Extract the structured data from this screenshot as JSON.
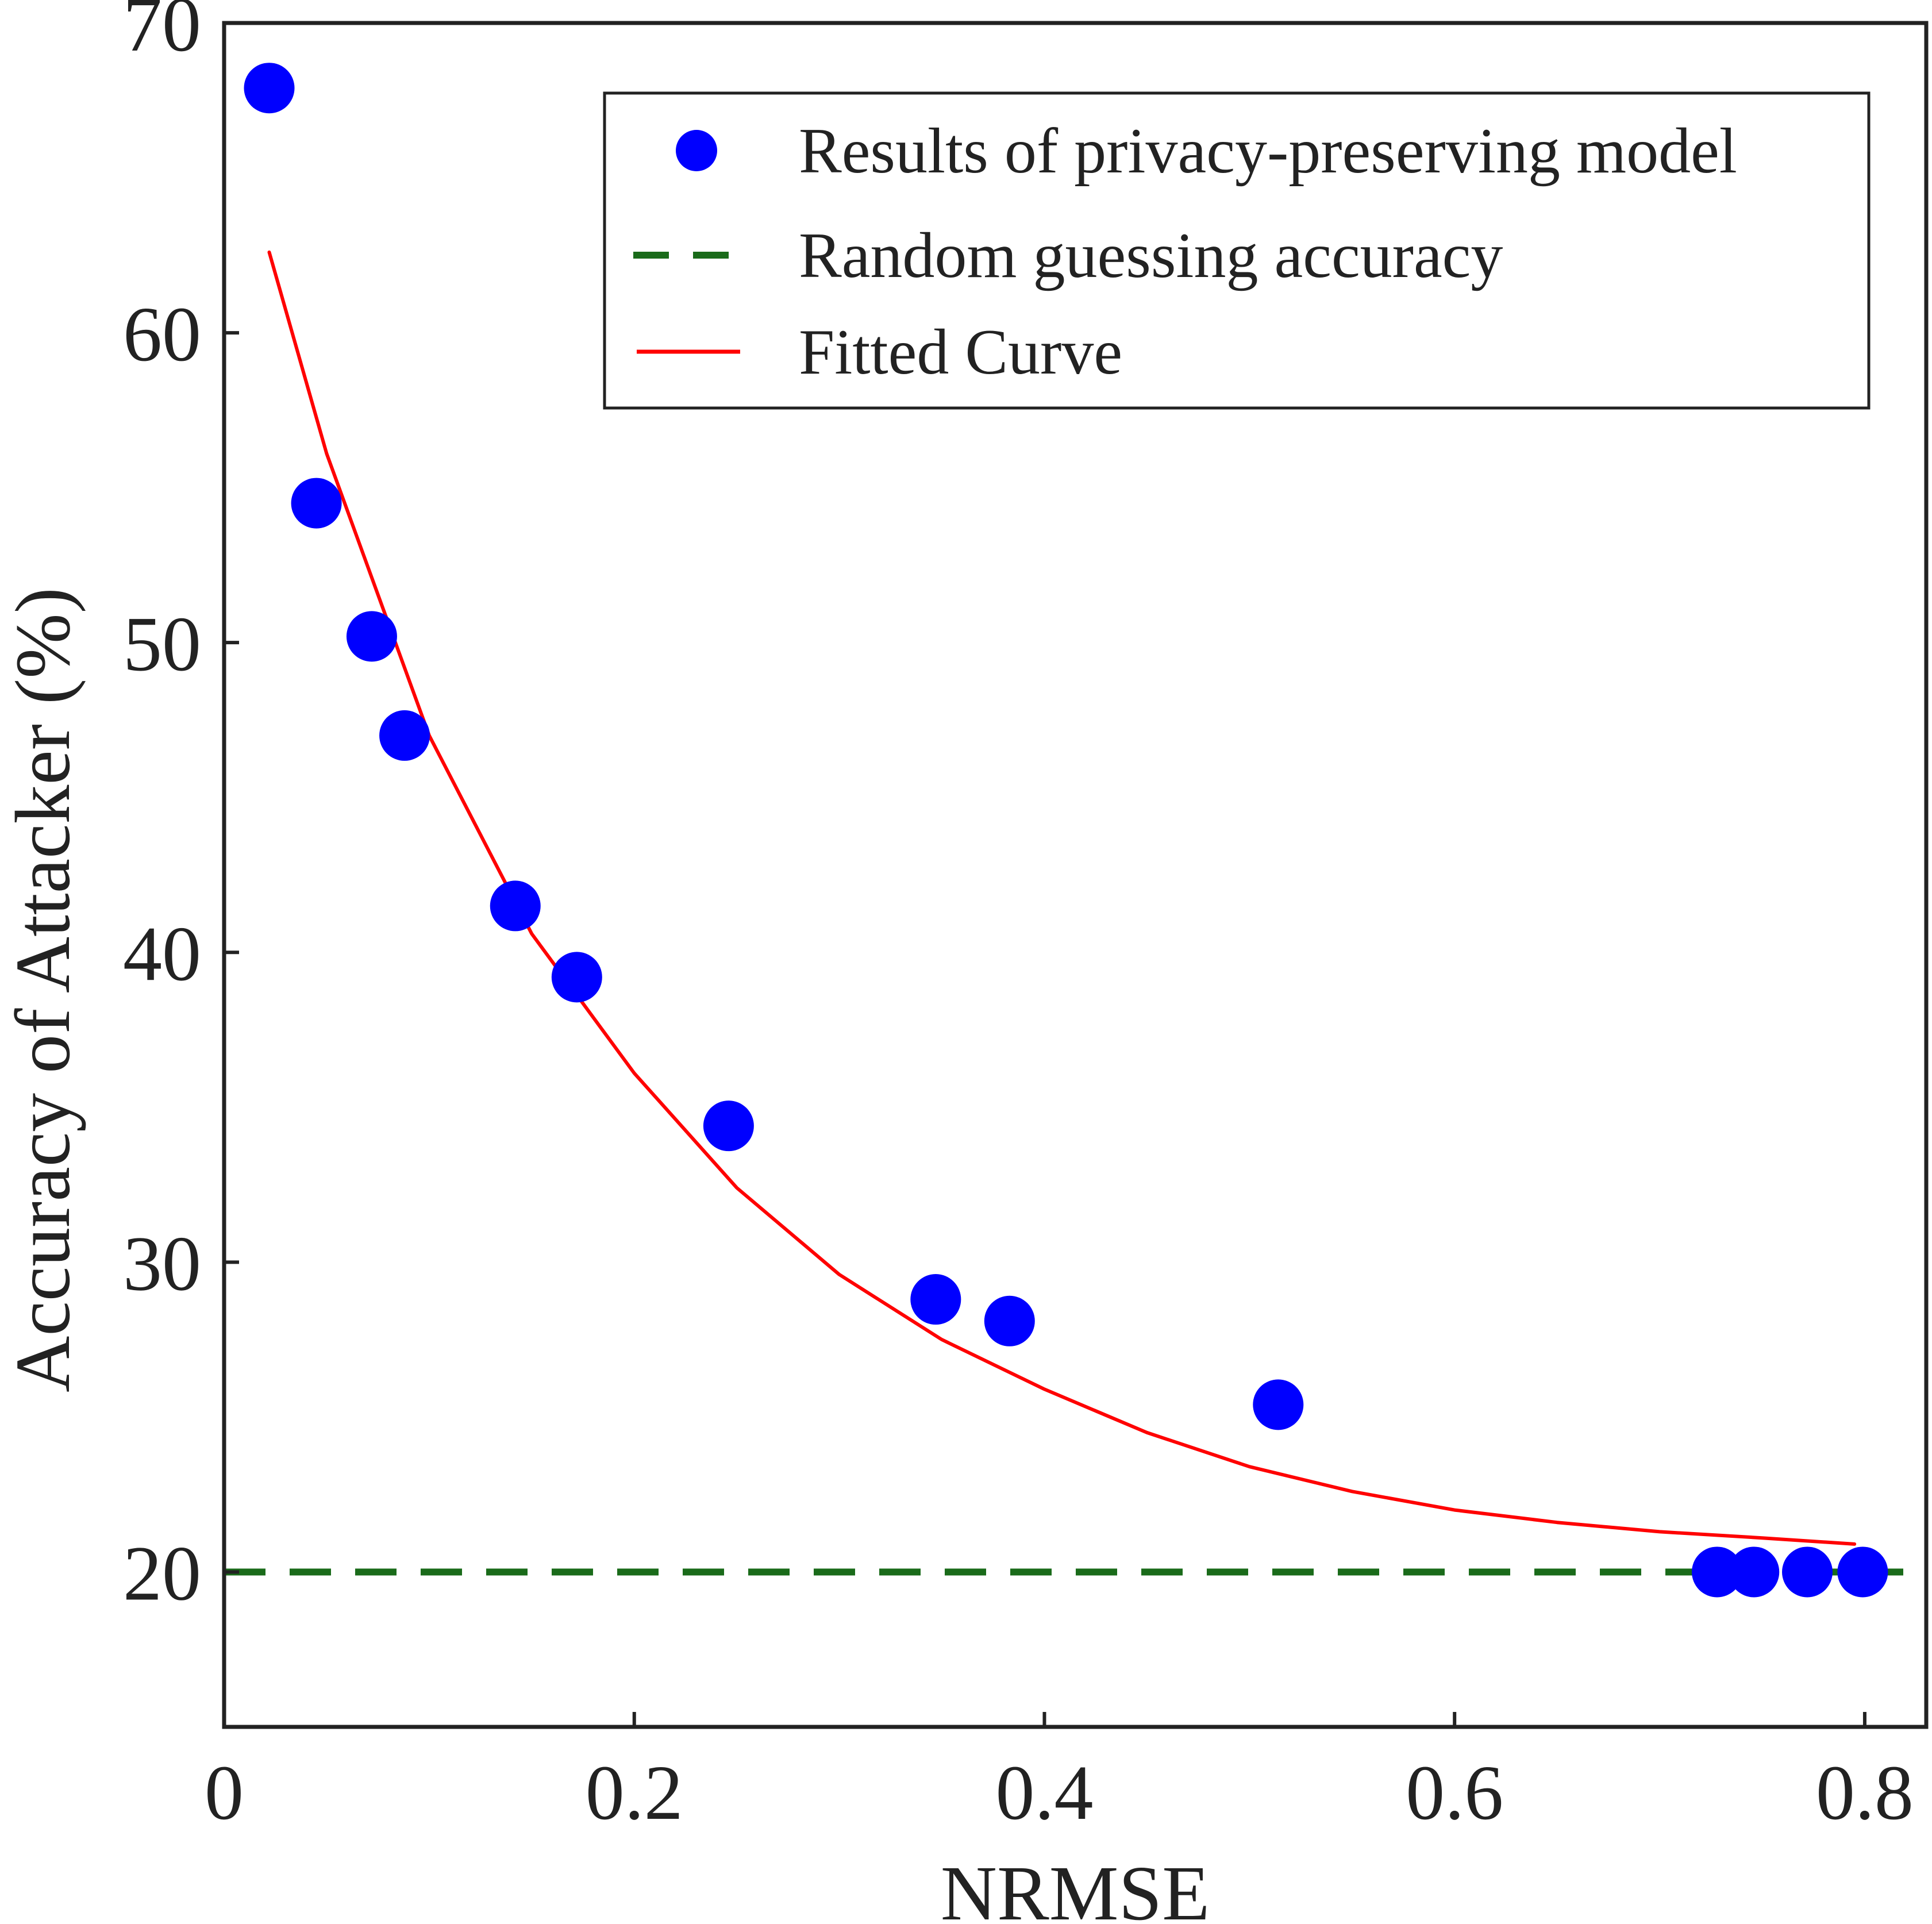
{
  "chart_data": {
    "type": "scatter",
    "xlabel": "NRMSE",
    "ylabel": "Accuracy of Attacker (%)",
    "xlim": [
      0,
      0.83
    ],
    "ylim": [
      15,
      70
    ],
    "xticks": [
      0,
      0.2,
      0.4,
      0.6,
      0.8
    ],
    "xtick_labels": [
      "0",
      "0.2",
      "0.4",
      "0.6",
      "0.8"
    ],
    "yticks": [
      20,
      30,
      40,
      50,
      60,
      70
    ],
    "ytick_labels": [
      "20",
      "30",
      "40",
      "50",
      "60",
      "70"
    ],
    "grid": false,
    "legend_position": "top-right",
    "series": [
      {
        "name": "Results of privacy-preserving model",
        "kind": "scatter",
        "color": "#0000ff",
        "x": [
          0.022,
          0.045,
          0.072,
          0.088,
          0.142,
          0.172,
          0.246,
          0.347,
          0.383,
          0.514,
          0.728,
          0.746,
          0.772,
          0.799
        ],
        "y": [
          67.9,
          54.5,
          50.2,
          47.0,
          41.5,
          39.2,
          34.4,
          28.8,
          28.1,
          25.4,
          20.0,
          20.0,
          20.0,
          20.0
        ]
      },
      {
        "name": "Random guessing accuracy",
        "kind": "hline",
        "color": "#1a6b1a",
        "style": "dashed",
        "y": 20
      },
      {
        "name": "Fitted Curve",
        "kind": "line",
        "color": "#ff0000",
        "x": [
          0.022,
          0.05,
          0.1,
          0.15,
          0.2,
          0.25,
          0.3,
          0.35,
          0.4,
          0.45,
          0.5,
          0.55,
          0.6,
          0.65,
          0.7,
          0.75,
          0.795
        ],
        "y": [
          62.6,
          56.1,
          47.0,
          40.6,
          36.1,
          32.4,
          29.6,
          27.5,
          25.9,
          24.5,
          23.4,
          22.6,
          22.0,
          21.6,
          21.3,
          21.1,
          20.9
        ]
      }
    ]
  }
}
